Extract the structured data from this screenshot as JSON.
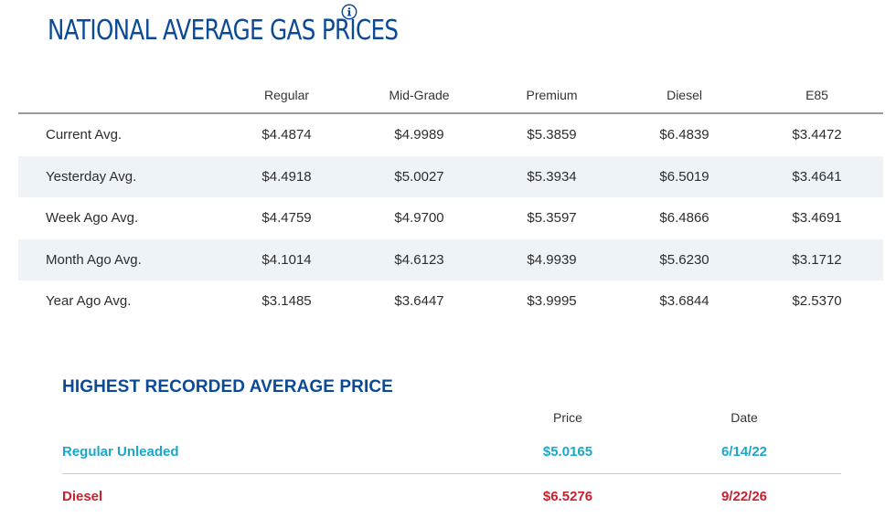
{
  "header": {
    "title": "NATIONAL AVERAGE GAS PRICES"
  },
  "icons": {
    "info": "info-icon"
  },
  "colors": {
    "title": "#0b4a96",
    "row_shade": "#eef3f8",
    "regular_unleaded": "#1aa7c9",
    "diesel": "#c8202f"
  },
  "price_table": {
    "columns": [
      "Regular",
      "Mid-Grade",
      "Premium",
      "Diesel",
      "E85"
    ],
    "rows": [
      {
        "label": "Current Avg.",
        "values": [
          "$4.4874",
          "$4.9989",
          "$5.3859",
          "$6.4839",
          "$3.4472"
        ]
      },
      {
        "label": "Yesterday Avg.",
        "values": [
          "$4.4918",
          "$5.0027",
          "$5.3934",
          "$6.5019",
          "$3.4641"
        ]
      },
      {
        "label": "Week Ago Avg.",
        "values": [
          "$4.4759",
          "$4.9700",
          "$5.3597",
          "$6.4866",
          "$3.4691"
        ]
      },
      {
        "label": "Month Ago Avg.",
        "values": [
          "$4.1014",
          "$4.6123",
          "$4.9939",
          "$5.6230",
          "$3.1712"
        ]
      },
      {
        "label": "Year Ago Avg.",
        "values": [
          "$3.1485",
          "$3.6447",
          "$3.9995",
          "$3.6844",
          "$2.5370"
        ]
      }
    ]
  },
  "highest_recorded": {
    "title": "HIGHEST RECORDED AVERAGE PRICE",
    "columns": {
      "price": "Price",
      "date": "Date"
    },
    "rows": [
      {
        "label": "Regular Unleaded",
        "price": "$5.0165",
        "date": "6/14/22"
      },
      {
        "label": "Diesel",
        "price": "$6.5276",
        "date": "9/22/26"
      }
    ]
  }
}
